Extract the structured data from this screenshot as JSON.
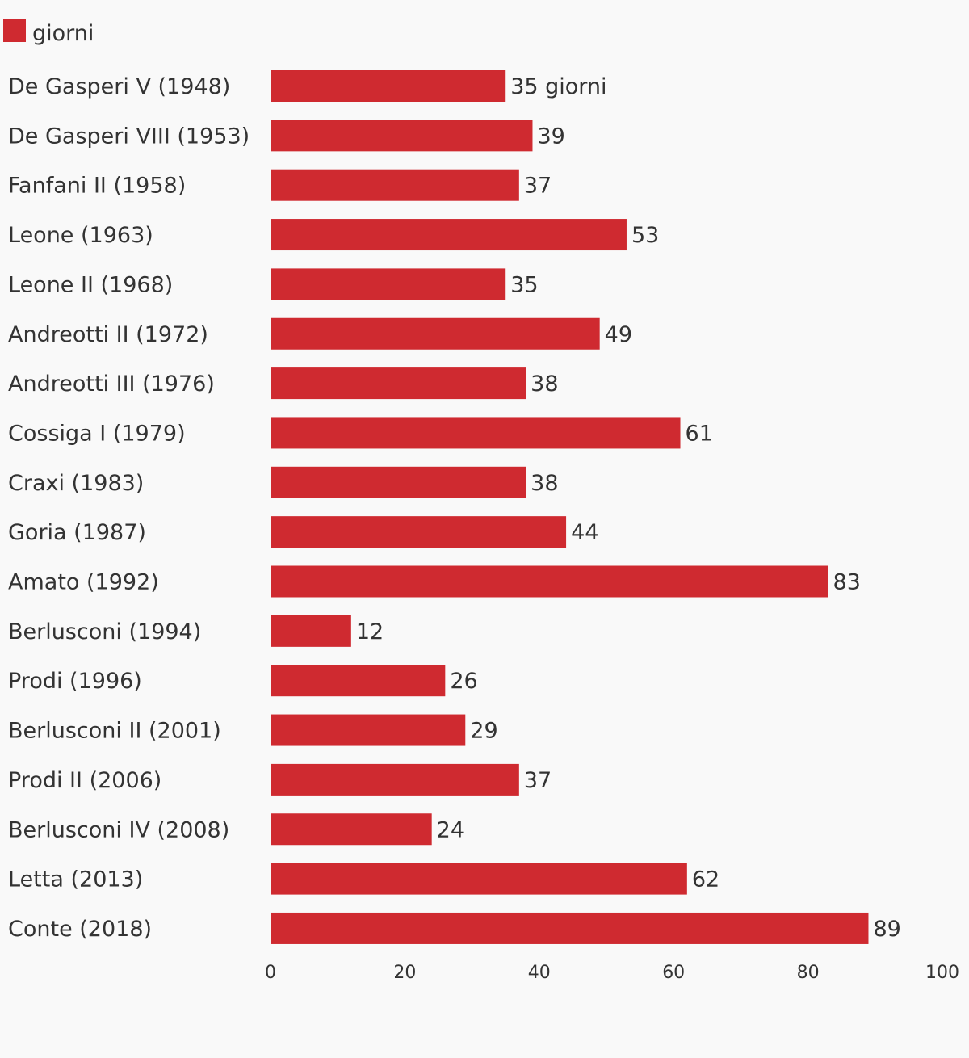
{
  "legend": {
    "label": "giorni",
    "color": "#cf2a30"
  },
  "chart_data": {
    "type": "bar",
    "orientation": "horizontal",
    "categories": [
      "De Gasperi V (1948)",
      "De Gasperi VIII (1953)",
      "Fanfani II (1958)",
      "Leone (1963)",
      "Leone II (1968)",
      "Andreotti II (1972)",
      "Andreotti III (1976)",
      "Cossiga I (1979)",
      "Craxi (1983)",
      "Goria (1987)",
      "Amato (1992)",
      "Berlusconi (1994)",
      "Prodi (1996)",
      "Berlusconi II (2001)",
      "Prodi II (2006)",
      "Berlusconi IV (2008)",
      "Letta (2013)",
      "Conte (2018)"
    ],
    "series": [
      {
        "name": "giorni",
        "color": "#cf2a30",
        "values": [
          35,
          39,
          37,
          53,
          35,
          49,
          38,
          61,
          38,
          44,
          83,
          12,
          26,
          29,
          37,
          24,
          62,
          89
        ]
      }
    ],
    "data_labels": [
      "35 giorni",
      "39",
      "37",
      "53",
      "35",
      "49",
      "38",
      "61",
      "38",
      "44",
      "83",
      "12",
      "26",
      "29",
      "37",
      "24",
      "62",
      "89"
    ],
    "xlim": [
      0,
      100
    ],
    "xticks": [
      0,
      20,
      40,
      60,
      80,
      100
    ],
    "xtick_labels": [
      "0",
      "20",
      "40",
      "60",
      "80",
      "100"
    ],
    "grid": false,
    "legend_position": "top-left"
  }
}
